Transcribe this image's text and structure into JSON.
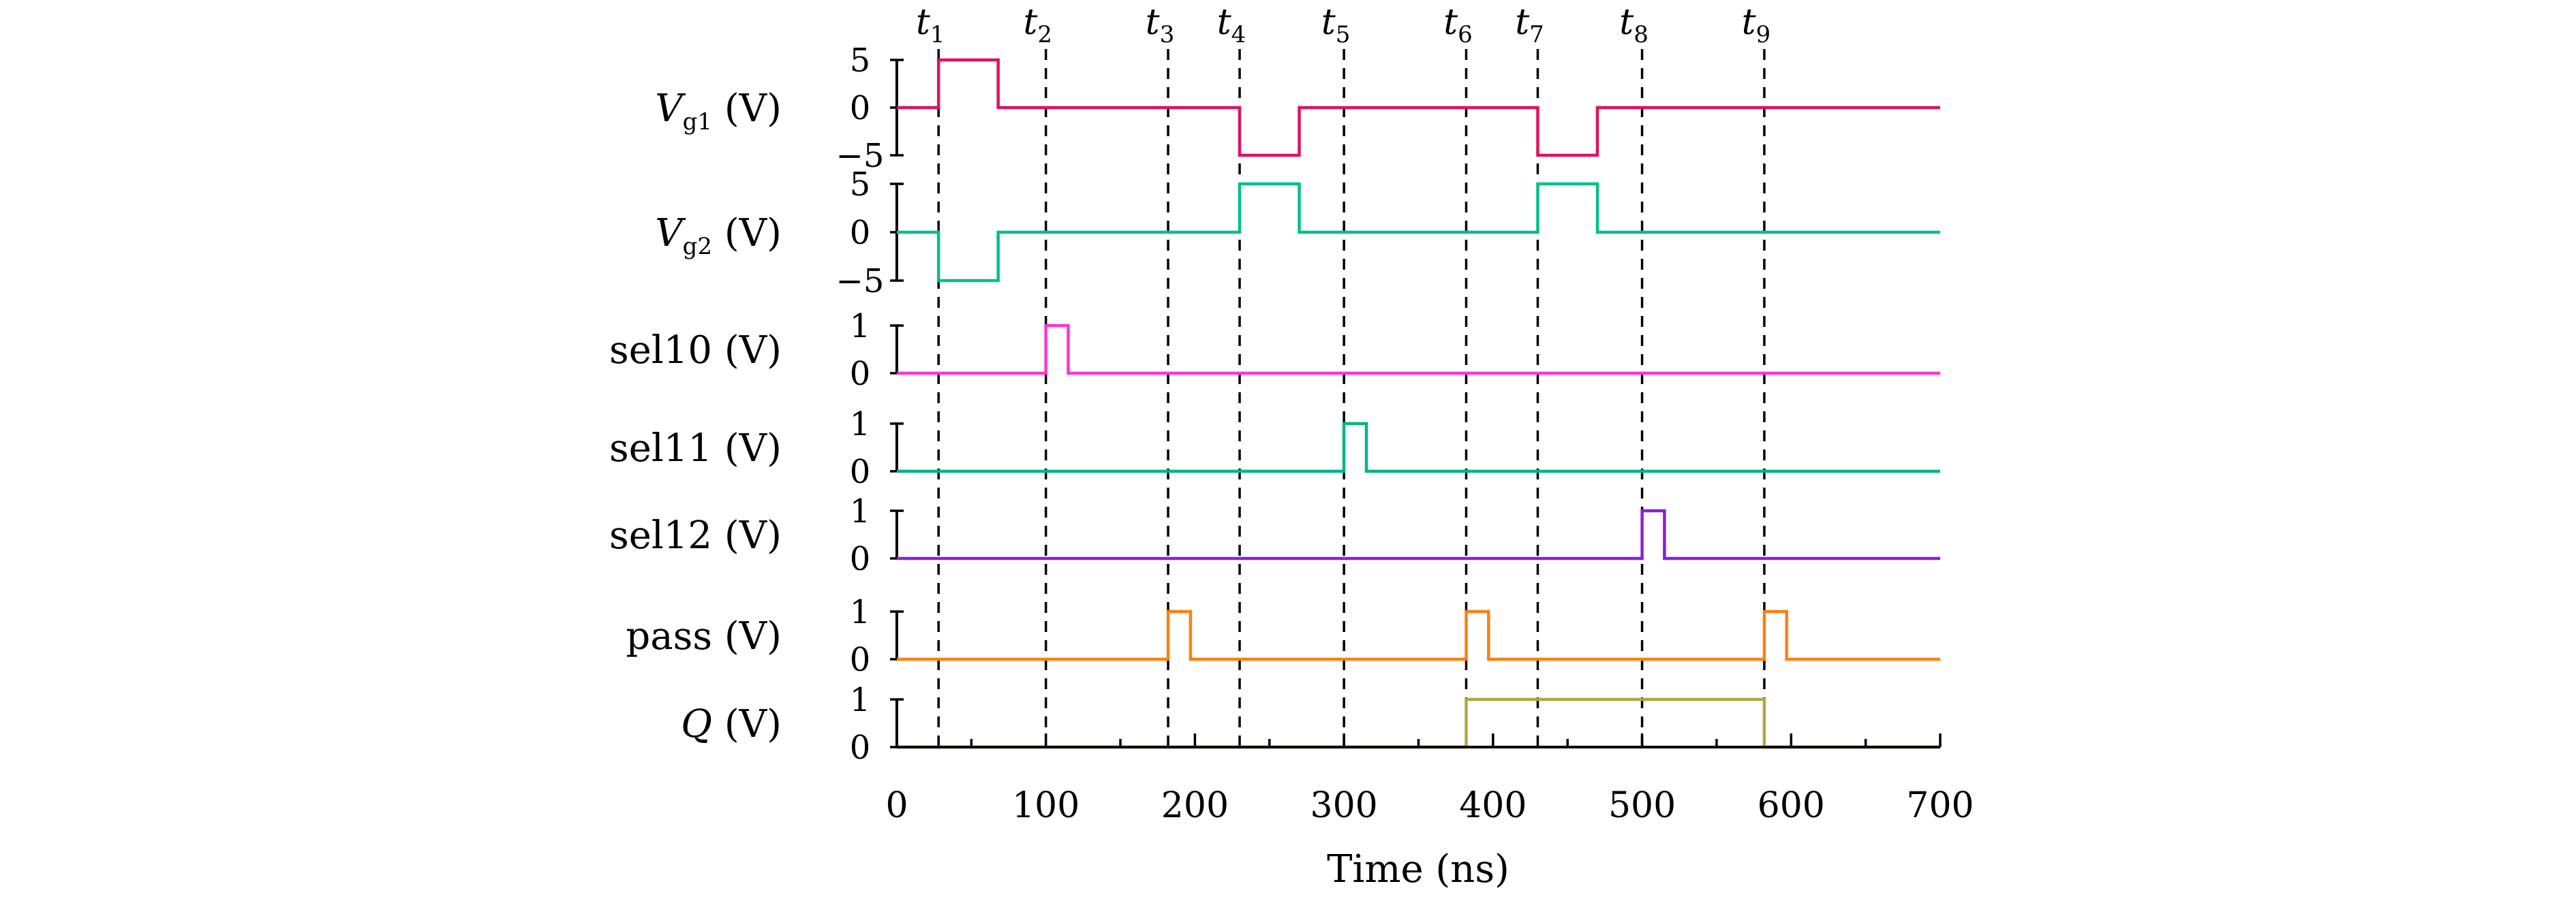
{
  "chart_data": {
    "type": "line",
    "xlabel": "Time (ns)",
    "xlim": [
      0,
      700
    ],
    "xticks": [
      "0",
      "100",
      "200",
      "300",
      "400",
      "500",
      "600",
      "700"
    ],
    "markers": [
      {
        "name": "t",
        "sub": "1",
        "x": 28
      },
      {
        "name": "t",
        "sub": "2",
        "x": 100
      },
      {
        "name": "t",
        "sub": "3",
        "x": 182
      },
      {
        "name": "t",
        "sub": "4",
        "x": 230
      },
      {
        "name": "t",
        "sub": "5",
        "x": 300
      },
      {
        "name": "t",
        "sub": "6",
        "x": 382
      },
      {
        "name": "t",
        "sub": "7",
        "x": 430
      },
      {
        "name": "t",
        "sub": "8",
        "x": 500
      },
      {
        "name": "t",
        "sub": "9",
        "x": 582
      }
    ],
    "series": [
      {
        "label_main": "V",
        "label_sub": "g1",
        "label_unit": " (V)",
        "label_italic": true,
        "color": "#e0115f",
        "ylim": [
          -5,
          5
        ],
        "yticks": [
          "5",
          "0",
          "−5"
        ],
        "x": [
          0,
          28,
          28,
          68,
          68,
          230,
          230,
          270,
          270,
          430,
          430,
          470,
          470,
          700
        ],
        "y": [
          0,
          0,
          5,
          5,
          0,
          0,
          -5,
          -5,
          0,
          0,
          -5,
          -5,
          0,
          0
        ]
      },
      {
        "label_main": "V",
        "label_sub": "g2",
        "label_unit": " (V)",
        "label_italic": true,
        "color": "#00c08b",
        "ylim": [
          -5,
          5
        ],
        "yticks": [
          "5",
          "0",
          "−5"
        ],
        "x": [
          0,
          28,
          28,
          68,
          68,
          230,
          230,
          270,
          270,
          430,
          430,
          470,
          470,
          700
        ],
        "y": [
          0,
          0,
          -5,
          -5,
          0,
          0,
          5,
          5,
          0,
          0,
          5,
          5,
          0,
          0
        ]
      },
      {
        "label_main": "sel10",
        "label_sub": "",
        "label_unit": " (V)",
        "label_italic": false,
        "color": "#ff33d6",
        "ylim": [
          0,
          1
        ],
        "yticks": [
          "1",
          "0"
        ],
        "x": [
          0,
          100,
          100,
          115,
          115,
          700
        ],
        "y": [
          0,
          0,
          1,
          1,
          0,
          0
        ]
      },
      {
        "label_main": "sel11",
        "label_sub": "",
        "label_unit": " (V)",
        "label_italic": false,
        "color": "#00b585",
        "ylim": [
          0,
          1
        ],
        "yticks": [
          "1",
          "0"
        ],
        "x": [
          0,
          300,
          300,
          315,
          315,
          700
        ],
        "y": [
          0,
          0,
          1,
          1,
          0,
          0
        ]
      },
      {
        "label_main": "sel12",
        "label_sub": "",
        "label_unit": " (V)",
        "label_italic": false,
        "color": "#8a1fe0",
        "ylim": [
          0,
          1
        ],
        "yticks": [
          "1",
          "0"
        ],
        "x": [
          0,
          500,
          500,
          515,
          515,
          700
        ],
        "y": [
          0,
          0,
          1,
          1,
          0,
          0
        ]
      },
      {
        "label_main": "pass",
        "label_sub": "",
        "label_unit": " (V)",
        "label_italic": false,
        "color": "#ff7f0e",
        "ylim": [
          0,
          1
        ],
        "yticks": [
          "1",
          "0"
        ],
        "x": [
          0,
          182,
          182,
          197,
          197,
          382,
          382,
          397,
          397,
          582,
          582,
          597,
          597,
          700
        ],
        "y": [
          0,
          0,
          1,
          1,
          0,
          0,
          1,
          1,
          0,
          0,
          1,
          1,
          0,
          0
        ]
      },
      {
        "label_main": "Q",
        "label_sub": "",
        "label_unit": " (V)",
        "label_italic": true,
        "color": "#b5a642",
        "ylim": [
          0,
          1
        ],
        "yticks": [
          "1",
          "0"
        ],
        "x": [
          0,
          382,
          382,
          582,
          582,
          700
        ],
        "y": [
          0,
          0,
          1,
          1,
          0,
          0
        ]
      }
    ]
  }
}
